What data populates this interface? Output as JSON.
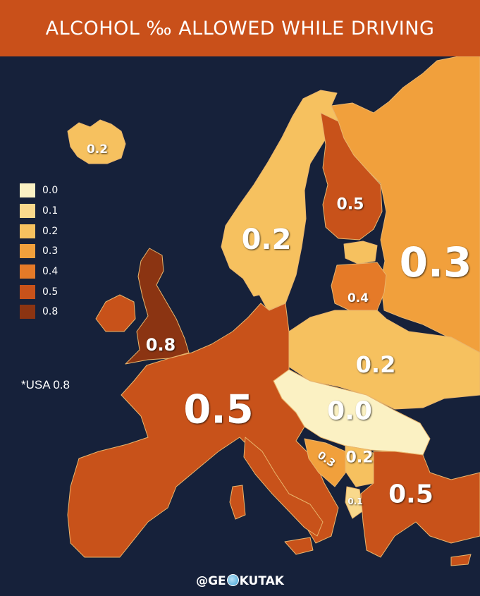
{
  "title": "ALCOHOL ‰ ALLOWED WHILE DRIVING",
  "legend": [
    {
      "value": "0.0",
      "color": "#fbf1c3"
    },
    {
      "value": "0.1",
      "color": "#f9d98c"
    },
    {
      "value": "0.2",
      "color": "#f6c15f"
    },
    {
      "value": "0.3",
      "color": "#f1a03c"
    },
    {
      "value": "0.4",
      "color": "#e57a28"
    },
    {
      "value": "0.5",
      "color": "#c8521a"
    },
    {
      "value": "0.8",
      "color": "#8b3412"
    }
  ],
  "note": "*USA 0.8",
  "credit": {
    "prefix": "@GE",
    "suffix": "KUTAK",
    "logo": "globe-icon"
  },
  "colors": {
    "sea": "#16213a",
    "title_bg": "#c9501a",
    "border": "#e9b56c"
  },
  "map_labels": {
    "iceland": "0.2",
    "scandinavia": "0.2",
    "finland": "0.5",
    "russia": "0.3",
    "baltic": "0.4",
    "uk": "0.8",
    "western_europe": "0.5",
    "poland_ukraine": "0.2",
    "central_east": "0.0",
    "croatia": "0.3",
    "serbia": "0.2",
    "albania": "0.1",
    "southeast": "0.5"
  }
}
